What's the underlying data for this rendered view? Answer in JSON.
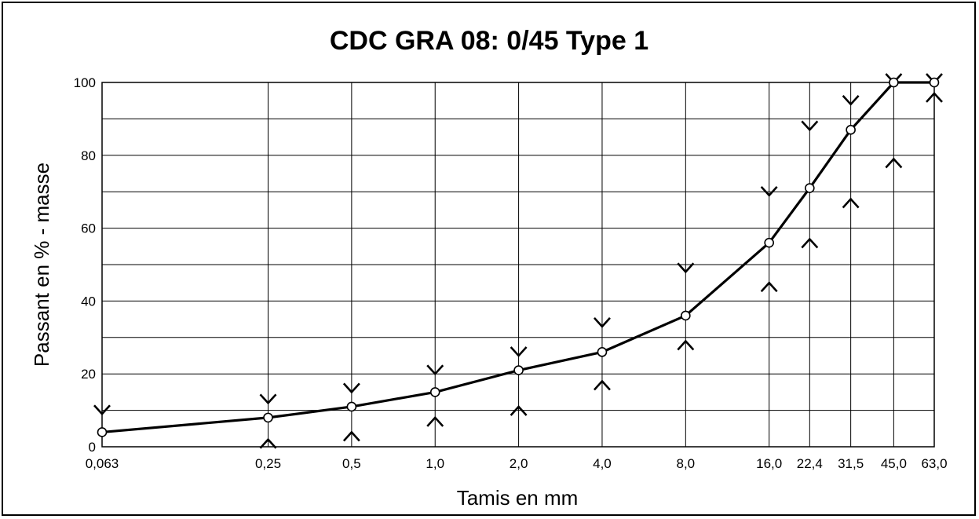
{
  "chart_data": {
    "type": "line",
    "title": "CDC GRA 08: 0/45 Type 1",
    "xlabel": "Tamis en mm",
    "ylabel": "Passant en % - masse",
    "ylim": [
      0,
      100
    ],
    "yticks": [
      0,
      20,
      40,
      60,
      80,
      100
    ],
    "categories": [
      "0,063",
      "0,25",
      "0,5",
      "1,0",
      "2,0",
      "4,0",
      "8,0",
      "16,0",
      "22,4",
      "31,5",
      "45,0",
      "63,0"
    ],
    "x": [
      0.063,
      0.25,
      0.5,
      1.0,
      2.0,
      4.0,
      8.0,
      16.0,
      22.4,
      31.5,
      45.0,
      63.0
    ],
    "series": [
      {
        "values": [
          4,
          8,
          11,
          15,
          21,
          26,
          36,
          56,
          71,
          87,
          100,
          100
        ]
      }
    ],
    "upper_limits": [
      9,
      12,
      15,
      20,
      25,
      33,
      48,
      69,
      87,
      94,
      100,
      100
    ],
    "lower_limits": [
      null,
      2,
      4,
      8,
      11,
      18,
      29,
      45,
      57,
      68,
      79,
      97
    ],
    "grid": true,
    "colors": {
      "line": "#000000",
      "marker_fill": "#ffffff"
    }
  }
}
